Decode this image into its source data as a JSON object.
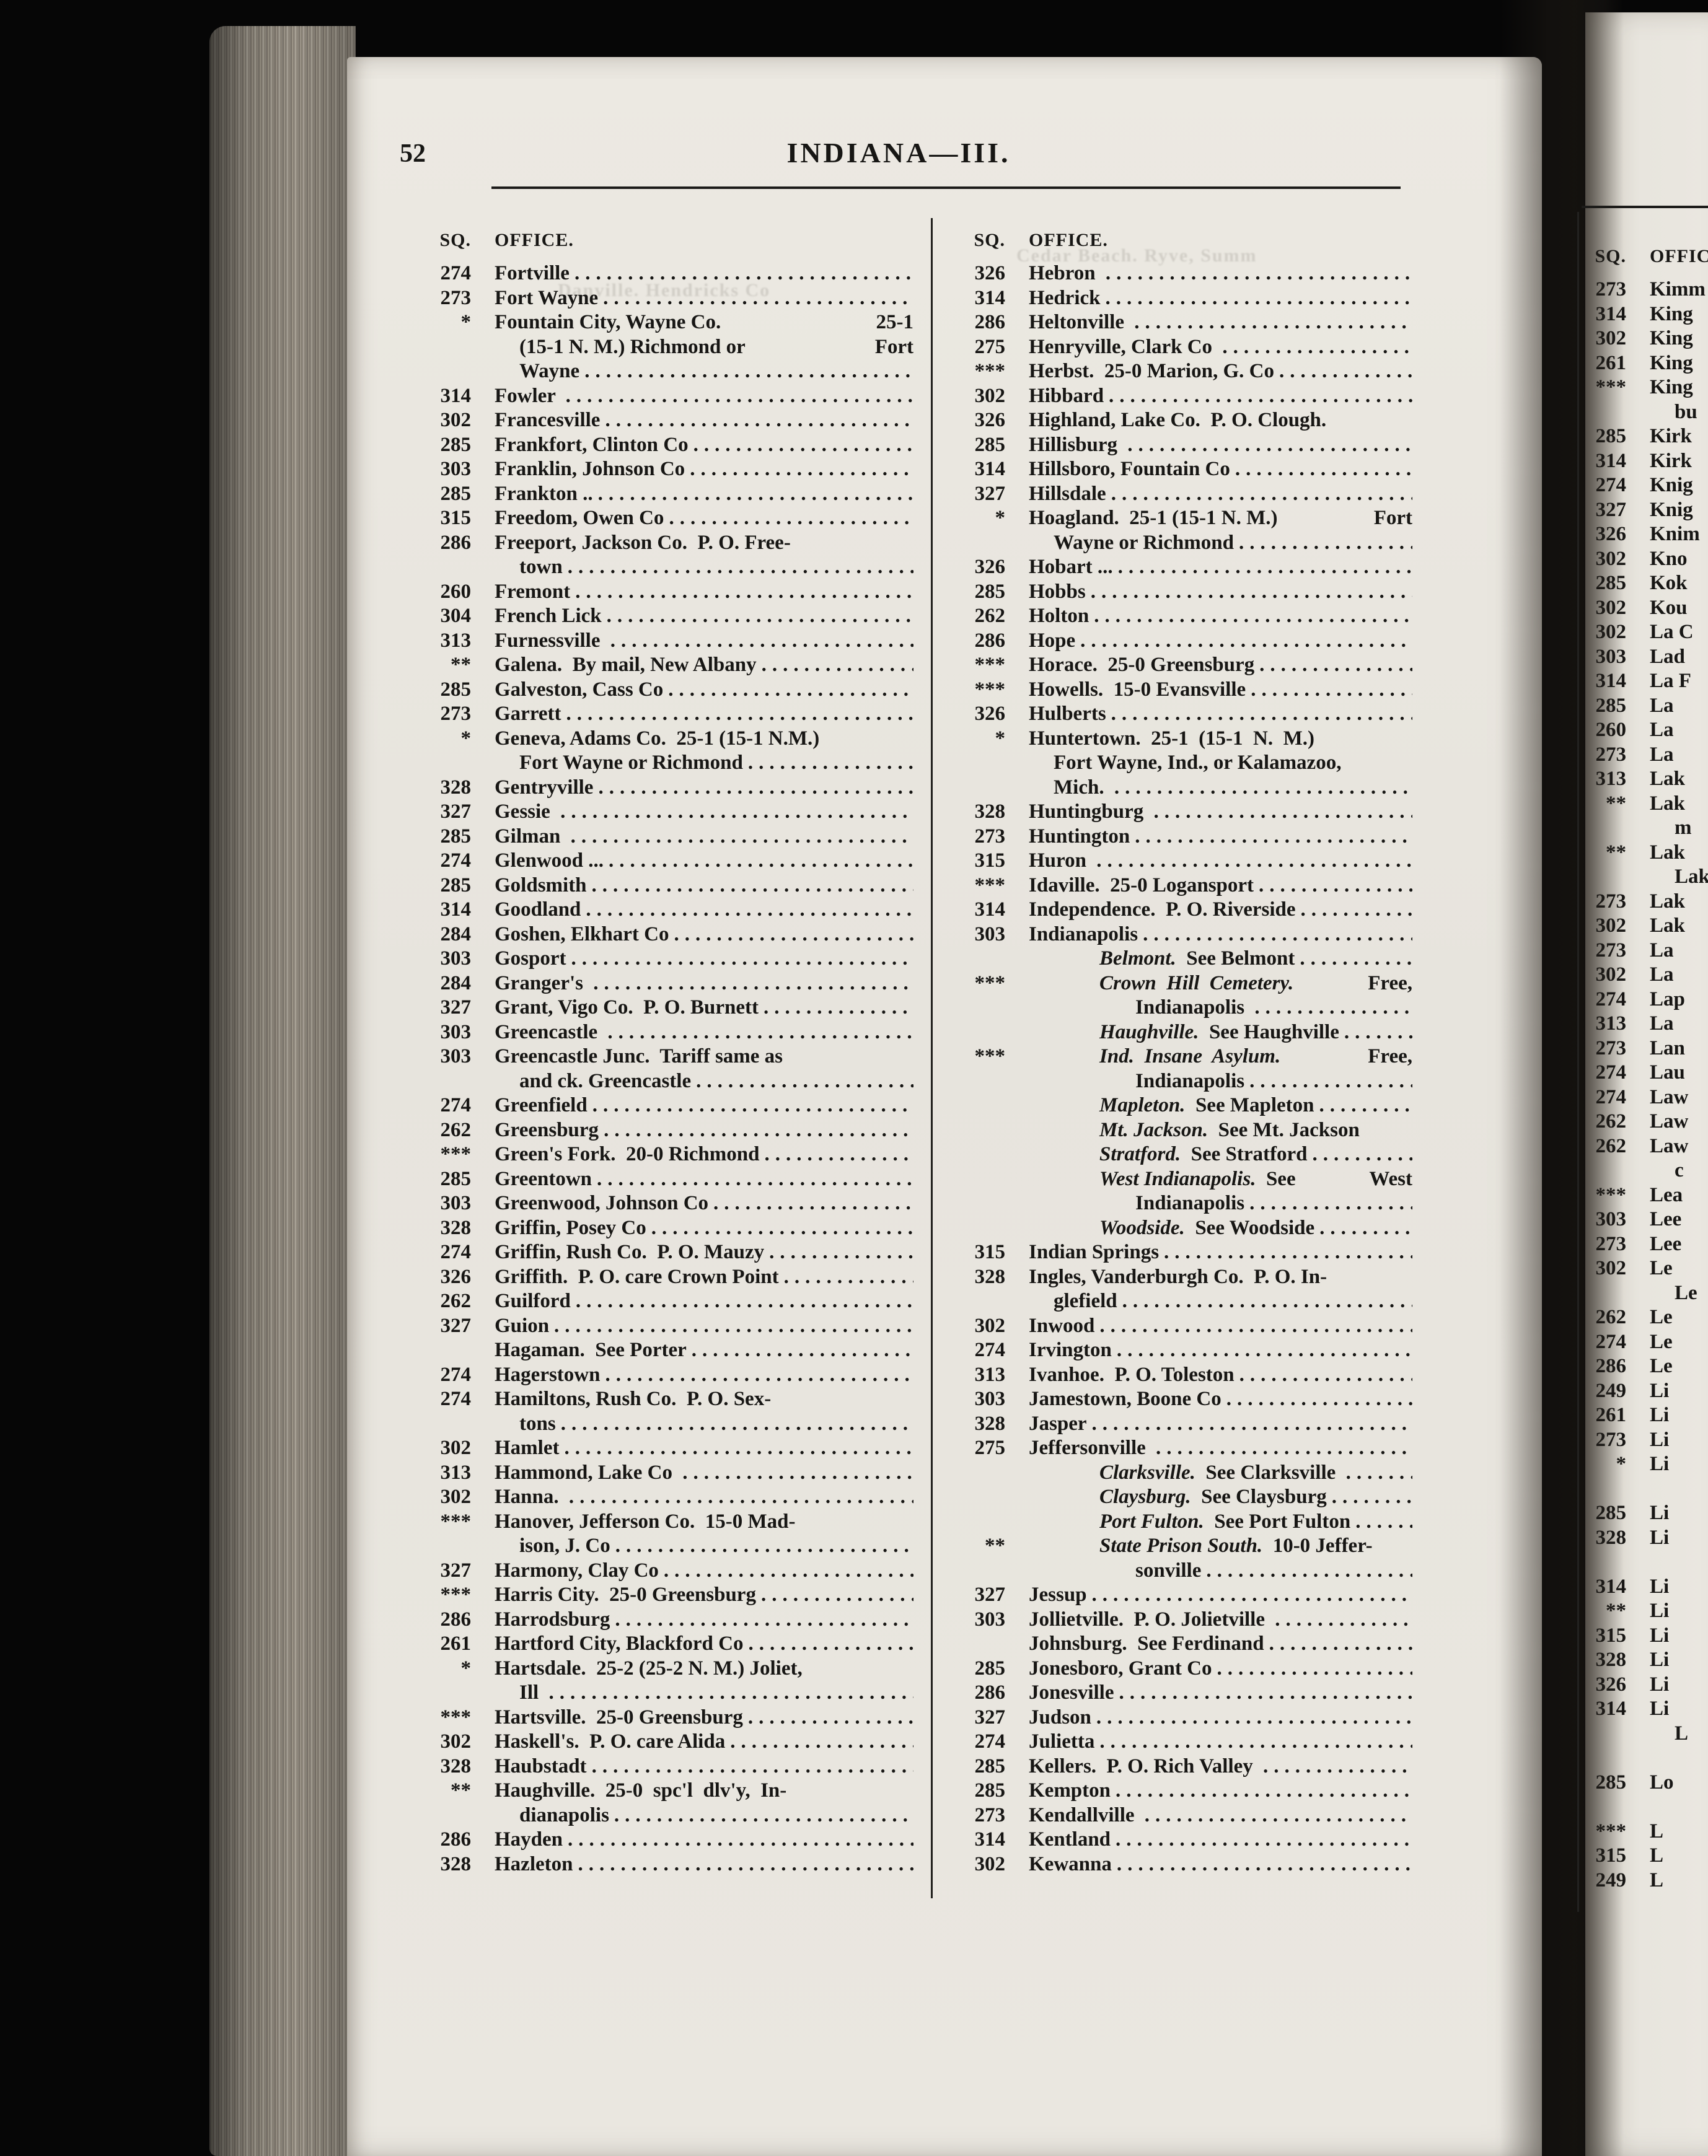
{
  "page": {
    "number": "52",
    "title": "INDIANA—III."
  },
  "headers": {
    "sq": "SQ.",
    "office": "OFFICE."
  },
  "ghosts": [
    "Cedar Beach. Ryve, Summ",
    "Danville. Hendricks Co"
  ],
  "columns": {
    "col1": [
      {
        "s": "274",
        "t": "Fortville",
        "d": 1
      },
      {
        "s": "273",
        "t": "Fort Wayne",
        "d": 1
      },
      {
        "s": "*",
        "t": "Fountain City, Wayne Co.",
        "x": "25-1",
        "d": 0
      },
      {
        "t": "(15-1 N. M.) Richmond or",
        "x": "Fort",
        "d": 0,
        "n": 1
      },
      {
        "t": "Wayne",
        "d": 1,
        "n": 1
      },
      {
        "s": "314",
        "t": "Fowler ",
        "d": 1
      },
      {
        "s": "302",
        "t": "Francesville",
        "d": 1
      },
      {
        "s": "285",
        "t": "Frankfort, Clinton Co",
        "d": 1
      },
      {
        "s": "303",
        "t": "Franklin, Johnson Co",
        "d": 1
      },
      {
        "s": "285",
        "t": "Frankton ..",
        "d": 1
      },
      {
        "s": "315",
        "t": "Freedom, Owen Co",
        "d": 1
      },
      {
        "s": "286",
        "t": "Freeport, Jackson Co.  P. O. Free-",
        "d": 0
      },
      {
        "t": "town",
        "d": 1,
        "n": 1
      },
      {
        "s": "260",
        "t": "Fremont",
        "d": 1
      },
      {
        "s": "304",
        "t": "French Lick",
        "d": 1
      },
      {
        "s": "313",
        "t": "Furnessville ",
        "d": 1
      },
      {
        "s": "**",
        "t": "Galena.  By mail, New Albany",
        "d": 1
      },
      {
        "s": "285",
        "t": "Galveston, Cass Co",
        "d": 1
      },
      {
        "s": "273",
        "t": "Garrett",
        "d": 1
      },
      {
        "s": "*",
        "t": "Geneva, Adams Co.  25-1 (15-1 N.M.)",
        "d": 0
      },
      {
        "t": "Fort Wayne or Richmond",
        "d": 1,
        "n": 1
      },
      {
        "s": "328",
        "t": "Gentryville",
        "d": 1
      },
      {
        "s": "327",
        "t": "Gessie ",
        "d": 1
      },
      {
        "s": "285",
        "t": "Gilman ",
        "d": 1
      },
      {
        "s": "274",
        "t": "Glenwood ...",
        "d": 1
      },
      {
        "s": "285",
        "t": "Goldsmith",
        "d": 1
      },
      {
        "s": "314",
        "t": "Goodland",
        "d": 1
      },
      {
        "s": "284",
        "t": "Goshen, Elkhart Co",
        "d": 1
      },
      {
        "s": "303",
        "t": "Gosport",
        "d": 1
      },
      {
        "s": "284",
        "t": "Granger's ",
        "d": 1
      },
      {
        "s": "327",
        "t": "Grant, Vigo Co.  P. O. Burnett",
        "d": 1
      },
      {
        "s": "303",
        "t": "Greencastle ",
        "d": 1
      },
      {
        "s": "303",
        "t": "Greencastle Junc.  Tariff same as",
        "d": 0
      },
      {
        "t": "and ck. Greencastle",
        "d": 1,
        "n": 1
      },
      {
        "s": "274",
        "t": "Greenfield",
        "d": 1
      },
      {
        "s": "262",
        "t": "Greensburg",
        "d": 1
      },
      {
        "s": "***",
        "t": "Green's Fork.  20-0 Richmond",
        "d": 1
      },
      {
        "s": "285",
        "t": "Greentown",
        "d": 1
      },
      {
        "s": "303",
        "t": "Greenwood, Johnson Co",
        "d": 1
      },
      {
        "s": "328",
        "t": "Griffin, Posey Co",
        "d": 1
      },
      {
        "s": "274",
        "t": "Griffin, Rush Co.  P. O. Mauzy",
        "d": 1
      },
      {
        "s": "326",
        "t": "Griffith.  P. O. care Crown Point",
        "d": 1
      },
      {
        "s": "262",
        "t": "Guilford",
        "d": 1
      },
      {
        "s": "327",
        "t": "Guion",
        "d": 1
      },
      {
        "t": "Hagaman.  See Porter",
        "d": 1
      },
      {
        "s": "274",
        "t": "Hagerstown",
        "d": 1
      },
      {
        "s": "274",
        "t": "Hamiltons, Rush Co.  P. O. Sex-",
        "d": 0
      },
      {
        "t": "tons",
        "d": 1,
        "n": 1
      },
      {
        "s": "302",
        "t": "Hamlet",
        "d": 1
      },
      {
        "s": "313",
        "t": "Hammond, Lake Co ",
        "d": 1
      },
      {
        "s": "302",
        "t": "Hanna. ",
        "d": 1
      },
      {
        "s": "***",
        "t": "Hanover, Jefferson Co.  15-0 Mad-",
        "d": 0
      },
      {
        "t": "ison, J. Co",
        "d": 1,
        "n": 1
      },
      {
        "s": "327",
        "t": "Harmony, Clay Co",
        "d": 1
      },
      {
        "s": "***",
        "t": "Harris City.  25-0 Greensburg",
        "d": 1
      },
      {
        "s": "286",
        "t": "Harrodsburg",
        "d": 1
      },
      {
        "s": "261",
        "t": "Hartford City, Blackford Co",
        "d": 1
      },
      {
        "s": "*",
        "t": "Hartsdale.  25-2 (25-2 N. M.) Joliet,",
        "d": 0
      },
      {
        "t": "Ill ",
        "d": 1,
        "n": 1
      },
      {
        "s": "***",
        "t": "Hartsville.  25-0 Greensburg",
        "d": 1
      },
      {
        "s": "302",
        "t": "Haskell's.  P. O. care Alida",
        "d": 1
      },
      {
        "s": "328",
        "t": "Haubstadt",
        "d": 1
      },
      {
        "s": "**",
        "t": "Haughville.  25-0  spc'l  dlv'y,  In-",
        "d": 0
      },
      {
        "t": "dianapolis",
        "d": 1,
        "n": 1
      },
      {
        "s": "286",
        "t": "Hayden",
        "d": 1
      },
      {
        "s": "328",
        "t": "Hazleton",
        "d": 1
      }
    ],
    "col2": [
      {
        "s": "326",
        "t": "Hebron ",
        "d": 1
      },
      {
        "s": "314",
        "t": "Hedrick",
        "d": 1
      },
      {
        "s": "286",
        "t": "Heltonville ",
        "d": 1
      },
      {
        "s": "275",
        "t": "Henryville, Clark Co ",
        "d": 1
      },
      {
        "s": "***",
        "t": "Herbst.  25-0 Marion, G. Co",
        "d": 1
      },
      {
        "s": "302",
        "t": "Hibbard",
        "d": 1
      },
      {
        "s": "326",
        "t": "Highland, Lake Co.  P. O. Clough.",
        "d": 0
      },
      {
        "s": "285",
        "t": "Hillisburg ",
        "d": 1
      },
      {
        "s": "314",
        "t": "Hillsboro, Fountain Co",
        "d": 1
      },
      {
        "s": "327",
        "t": "Hillsdale",
        "d": 1
      },
      {
        "s": "*",
        "t": "Hoagland.  25-1 (15-1 N. M.)",
        "x": "Fort",
        "d": 0
      },
      {
        "t": "Wayne or Richmond",
        "d": 1,
        "n": 1
      },
      {
        "s": "326",
        "t": "Hobart ...",
        "d": 1
      },
      {
        "s": "285",
        "t": "Hobbs",
        "d": 1
      },
      {
        "s": "262",
        "t": "Holton",
        "d": 1
      },
      {
        "s": "286",
        "t": "Hope",
        "d": 1
      },
      {
        "s": "***",
        "t": "Horace.  25-0 Greensburg",
        "d": 1
      },
      {
        "s": "***",
        "t": "Howells.  15-0 Evansville",
        "d": 1
      },
      {
        "s": "326",
        "t": "Hulberts",
        "d": 1
      },
      {
        "s": "*",
        "t": "Huntertown.  25-1  (15-1  N.  M.)",
        "d": 0
      },
      {
        "t": "Fort Wayne, Ind., or Kalamazoo,",
        "d": 0,
        "n": 1
      },
      {
        "t": "Mich. ",
        "d": 1,
        "n": 1
      },
      {
        "s": "328",
        "t": "Huntingburg ",
        "d": 1
      },
      {
        "s": "273",
        "t": "Huntington",
        "d": 1
      },
      {
        "s": "315",
        "t": "Huron ",
        "d": 1
      },
      {
        "s": "***",
        "t": "Idaville.  25-0 Logansport",
        "d": 1
      },
      {
        "s": "314",
        "t": "Independence.  P. O. Riverside",
        "d": 1
      },
      {
        "s": "303",
        "t": "Indianapolis",
        "d": 1
      },
      {
        "i": "Belmont.",
        "t": "  See Belmont",
        "d": 1,
        "n": 2
      },
      {
        "s": "***",
        "i": "Crown  Hill  Cemetery.",
        "x": "Free,",
        "d": 0,
        "n": 2
      },
      {
        "t": "Indianapolis ",
        "d": 1,
        "n": 3
      },
      {
        "i": "Haughville.",
        "t": "  See Haughville",
        "d": 1,
        "n": 2
      },
      {
        "s": "***",
        "i": "Ind.  Insane  Asylum.",
        "x": "Free,",
        "d": 0,
        "n": 2
      },
      {
        "t": "Indianapolis",
        "d": 1,
        "n": 3
      },
      {
        "i": "Mapleton.",
        "t": "  See Mapleton",
        "d": 1,
        "n": 2
      },
      {
        "i": "Mt. Jackson.",
        "t": "  See Mt. Jackson",
        "d": 0,
        "n": 2
      },
      {
        "i": "Stratford.",
        "t": "  See Stratford",
        "d": 1,
        "n": 2
      },
      {
        "i": "West Indianapolis.",
        "t": "  See",
        "x": "West",
        "d": 0,
        "n": 2
      },
      {
        "t": "Indianapolis",
        "d": 1,
        "n": 3
      },
      {
        "i": "Woodside.",
        "t": "  See Woodside",
        "d": 1,
        "n": 2
      },
      {
        "s": "315",
        "t": "Indian Springs",
        "d": 1
      },
      {
        "s": "328",
        "t": "Ingles, Vanderburgh Co.  P. O. In-",
        "d": 0
      },
      {
        "t": "glefield",
        "d": 1,
        "n": 1
      },
      {
        "s": "302",
        "t": "Inwood",
        "d": 1
      },
      {
        "s": "274",
        "t": "Irvington",
        "d": 1
      },
      {
        "s": "313",
        "t": "Ivanhoe.  P. O. Toleston",
        "d": 1
      },
      {
        "s": "303",
        "t": "Jamestown, Boone Co",
        "d": 1
      },
      {
        "s": "328",
        "t": "Jasper",
        "d": 1
      },
      {
        "s": "275",
        "t": "Jeffersonville ",
        "d": 1
      },
      {
        "i": "Clarksville.",
        "t": "  See Clarksville ",
        "d": 1,
        "n": 2
      },
      {
        "i": "Claysburg.",
        "t": "  See Claysburg",
        "d": 1,
        "n": 2
      },
      {
        "i": "Port Fulton.",
        "t": "  See Port Fulton",
        "d": 1,
        "n": 2
      },
      {
        "s": "**",
        "i": "State Prison South.",
        "t": "  10-0 Jeffer-",
        "d": 0,
        "n": 2
      },
      {
        "t": "sonville",
        "d": 1,
        "n": 3
      },
      {
        "s": "327",
        "t": "Jessup",
        "d": 1
      },
      {
        "s": "303",
        "t": "Jollietville.  P. O. Jolietville ",
        "d": 1
      },
      {
        "t": "Johnsburg.  See Ferdinand",
        "d": 1
      },
      {
        "s": "285",
        "t": "Jonesboro, Grant Co",
        "d": 1
      },
      {
        "s": "286",
        "t": "Jonesville",
        "d": 1
      },
      {
        "s": "327",
        "t": "Judson",
        "d": 1
      },
      {
        "s": "274",
        "t": "Julietta",
        "d": 1
      },
      {
        "s": "285",
        "t": "Kellers.  P. O. Rich Valley ",
        "d": 1
      },
      {
        "s": "285",
        "t": "Kempton",
        "d": 1
      },
      {
        "s": "273",
        "t": "Kendallville ",
        "d": 1
      },
      {
        "s": "314",
        "t": "Kentland",
        "d": 1
      },
      {
        "s": "302",
        "t": "Kewanna",
        "d": 1
      }
    ],
    "col3": [
      {
        "s": "273",
        "t": "Kimm",
        "d": 0
      },
      {
        "s": "314",
        "t": "King",
        "d": 0
      },
      {
        "s": "302",
        "t": "King",
        "d": 0
      },
      {
        "s": "261",
        "t": "King",
        "d": 0
      },
      {
        "s": "***",
        "t": "King",
        "d": 0
      },
      {
        "t": "bu",
        "d": 0,
        "n": 1
      },
      {
        "s": "285",
        "t": "Kirk",
        "d": 0
      },
      {
        "s": "314",
        "t": "Kirk",
        "d": 0
      },
      {
        "s": "274",
        "t": "Knig",
        "d": 0
      },
      {
        "s": "327",
        "t": "Knig",
        "d": 0
      },
      {
        "s": "326",
        "t": "Knim",
        "d": 0
      },
      {
        "s": "302",
        "t": "Kno",
        "d": 0
      },
      {
        "s": "285",
        "t": "Kok",
        "d": 0
      },
      {
        "s": "302",
        "t": "Kou",
        "d": 0
      },
      {
        "s": "302",
        "t": "La C",
        "d": 0
      },
      {
        "s": "303",
        "t": "Lad",
        "d": 0
      },
      {
        "s": "314",
        "t": "La F",
        "d": 0
      },
      {
        "s": "285",
        "t": "La",
        "d": 0
      },
      {
        "s": "260",
        "t": "La",
        "d": 0
      },
      {
        "s": "273",
        "t": "La",
        "d": 0
      },
      {
        "s": "313",
        "t": "Lak",
        "d": 0
      },
      {
        "s": "**",
        "t": "Lak",
        "d": 0
      },
      {
        "t": "m",
        "d": 0,
        "n": 1
      },
      {
        "s": "**",
        "t": "Lak",
        "d": 0
      },
      {
        "t": "Lak",
        "d": 0,
        "n": 1
      },
      {
        "s": "273",
        "t": "Lak",
        "d": 0
      },
      {
        "s": "302",
        "t": "Lak",
        "d": 0
      },
      {
        "s": "273",
        "t": "La",
        "d": 0
      },
      {
        "s": "302",
        "t": "La",
        "d": 0
      },
      {
        "s": "274",
        "t": "Lap",
        "d": 0
      },
      {
        "s": "313",
        "t": "La",
        "d": 0
      },
      {
        "s": "273",
        "t": "Lan",
        "d": 0
      },
      {
        "s": "274",
        "t": "Lau",
        "d": 0
      },
      {
        "s": "274",
        "t": "Law",
        "d": 0
      },
      {
        "s": "262",
        "t": "Law",
        "d": 0
      },
      {
        "s": "262",
        "t": "Law",
        "d": 0
      },
      {
        "t": "c",
        "d": 0,
        "n": 1
      },
      {
        "s": "***",
        "t": "Lea",
        "d": 0
      },
      {
        "s": "303",
        "t": "Lee",
        "d": 0
      },
      {
        "s": "273",
        "t": "Lee",
        "d": 0
      },
      {
        "s": "302",
        "t": "Le",
        "d": 0
      },
      {
        "t": "Le",
        "d": 0,
        "n": 1
      },
      {
        "s": "262",
        "t": "Le",
        "d": 0
      },
      {
        "s": "274",
        "t": "Le",
        "d": 0
      },
      {
        "s": "286",
        "t": "Le",
        "d": 0
      },
      {
        "s": "249",
        "t": "Li",
        "d": 0
      },
      {
        "s": "261",
        "t": "Li",
        "d": 0
      },
      {
        "s": "273",
        "t": "Li",
        "d": 0
      },
      {
        "s": "*",
        "t": "Li",
        "d": 0
      },
      {
        "b": 1
      },
      {
        "s": "285",
        "t": "Li",
        "d": 0
      },
      {
        "s": "328",
        "t": "Li",
        "d": 0
      },
      {
        "b": 1
      },
      {
        "s": "314",
        "t": "Li",
        "d": 0
      },
      {
        "s": "**",
        "t": "Li",
        "d": 0
      },
      {
        "s": "315",
        "t": "Li",
        "d": 0
      },
      {
        "s": "328",
        "t": "Li",
        "d": 0
      },
      {
        "s": "326",
        "t": "Li",
        "d": 0
      },
      {
        "s": "314",
        "t": "Li",
        "d": 0
      },
      {
        "t": "L",
        "d": 0,
        "n": 1
      },
      {
        "b": 1
      },
      {
        "s": "285",
        "t": "Lo",
        "d": 0
      },
      {
        "b": 1
      },
      {
        "s": "***",
        "t": "L",
        "d": 0
      },
      {
        "s": "315",
        "t": "L",
        "d": 0
      },
      {
        "s": "249",
        "t": "L",
        "d": 0
      }
    ]
  }
}
